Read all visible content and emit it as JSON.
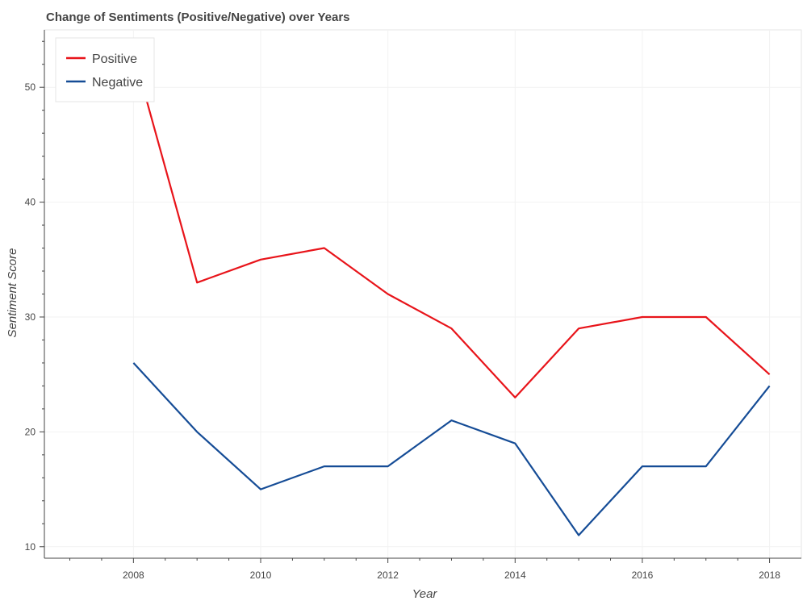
{
  "chart_data": {
    "type": "line",
    "title": "Change of Sentiments (Positive/Negative) over Years",
    "xlabel": "Year",
    "ylabel": "Sentiment Score",
    "x": [
      2008,
      2009,
      2010,
      2011,
      2012,
      2013,
      2014,
      2015,
      2016,
      2017,
      2018
    ],
    "xlim": [
      2006.6,
      2018.5
    ],
    "ylim": [
      9,
      55
    ],
    "x_ticks": [
      "2008",
      "2010",
      "2012",
      "2014",
      "2016",
      "2018"
    ],
    "y_ticks": [
      "10",
      "20",
      "30",
      "40",
      "50"
    ],
    "grid": true,
    "legend_position": "top-left",
    "series": [
      {
        "name": "Positive",
        "color": "#e8141a",
        "values": [
          53,
          33,
          35,
          36,
          32,
          29,
          23,
          29,
          30,
          30,
          25
        ]
      },
      {
        "name": "Negative",
        "color": "#154c96",
        "values": [
          26,
          20,
          15,
          17,
          17,
          21,
          19,
          11,
          17,
          17,
          24
        ]
      }
    ]
  }
}
